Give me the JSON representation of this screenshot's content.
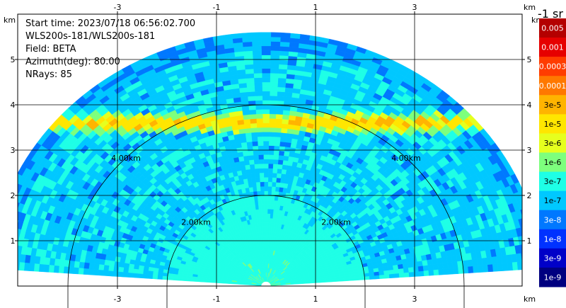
{
  "info": {
    "start_time": "Start time: 2023/07/18 06:56:02.700",
    "instrument": "WLS200s-181/WLS200s-181",
    "field": "Field: BETA",
    "azimuth": "Azimuth(deg): 80.00",
    "nrays": "NRays: 85"
  },
  "chart_data": {
    "type": "heatmap",
    "subtype": "rhi-polar",
    "field": "BETA",
    "azimuth_deg": 80.0,
    "nrays": 85,
    "max_range_km": 5.6,
    "x_unit": "km",
    "y_unit": "km",
    "xlim": [
      -4.0,
      4.0
    ],
    "ylim": [
      0.0,
      5.6
    ],
    "x_ticks": [
      -3,
      -1,
      1,
      3
    ],
    "x_tick_labels": [
      "-3",
      "-1",
      "1",
      "3"
    ],
    "y_ticks": [
      1,
      2,
      3,
      4,
      5
    ],
    "y_tick_labels": [
      "1",
      "2",
      "3",
      "4",
      "5"
    ],
    "grid": true,
    "range_rings_km": [
      2.0,
      4.0
    ],
    "range_ring_labels": [
      "2.00km",
      "4.00km"
    ],
    "features": {
      "aerosol_layer_height_km": 3.6,
      "near_field_strong_range_km": 2.0
    },
    "colorbar": {
      "title": "-1 sr",
      "levels": [
        "0.005",
        "0.001",
        "0.0003",
        "0.0001",
        "3e-5",
        "1e-5",
        "3e-6",
        "1e-6",
        "3e-7",
        "1e-7",
        "3e-8",
        "1e-8",
        "3e-9",
        "1e-9"
      ],
      "colors": [
        "#b40000",
        "#e60000",
        "#ff3c00",
        "#ff7800",
        "#ffb400",
        "#ffe600",
        "#e6ff1e",
        "#7dff7d",
        "#1effe6",
        "#00c8ff",
        "#0078ff",
        "#0032ff",
        "#0000c8",
        "#000080"
      ]
    }
  }
}
